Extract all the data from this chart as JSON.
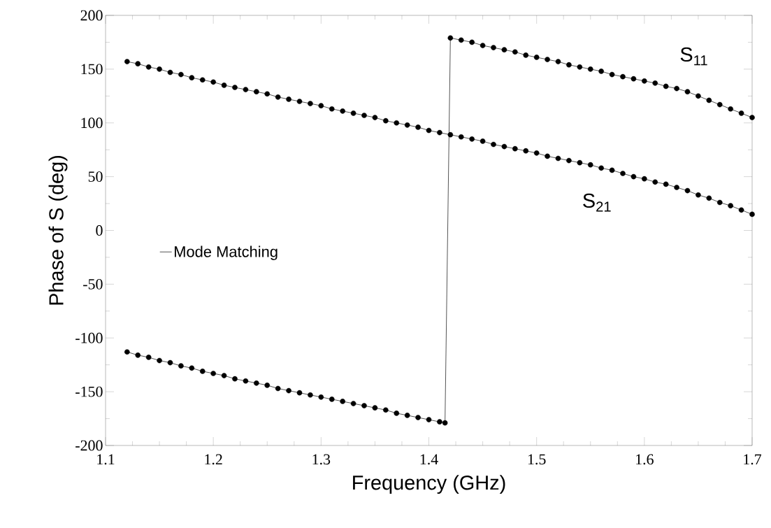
{
  "chart_data": {
    "type": "line",
    "xlabel": "Frequency (GHz)",
    "ylabel": "Phase of S (deg)",
    "xlim": [
      1.1,
      1.7
    ],
    "xticks": [
      1.1,
      1.2,
      1.3,
      1.4,
      1.5,
      1.6,
      1.7
    ],
    "ylim": [
      -200,
      200
    ],
    "yticks": [
      -200,
      -150,
      -100,
      -50,
      0,
      50,
      100,
      150,
      200
    ],
    "grid": false,
    "legend": "left",
    "annotations": [
      "S$_{11}$",
      "S$_{21}$"
    ],
    "series": [
      {
        "name": "Mode Matching",
        "color": "#555555",
        "line_style": "solid",
        "marker": "none",
        "x": [
          1.12,
          1.13,
          1.14,
          1.15,
          1.16,
          1.17,
          1.18,
          1.19,
          1.2,
          1.21,
          1.22,
          1.23,
          1.24,
          1.25,
          1.26,
          1.27,
          1.28,
          1.29,
          1.3,
          1.31,
          1.32,
          1.33,
          1.34,
          1.35,
          1.36,
          1.37,
          1.38,
          1.39,
          1.4,
          1.41,
          1.415,
          1.42,
          1.43,
          1.44,
          1.45,
          1.46,
          1.47,
          1.48,
          1.49,
          1.5,
          1.51,
          1.52,
          1.53,
          1.54,
          1.55,
          1.56,
          1.57,
          1.58,
          1.59,
          1.6,
          1.61,
          1.62,
          1.63,
          1.64,
          1.65,
          1.66,
          1.67,
          1.68,
          1.69,
          1.7
        ],
        "values": [
          -113,
          -116,
          -118,
          -121,
          -123,
          -126,
          -128,
          -131,
          -133,
          -135,
          -138,
          -140,
          -142,
          -144,
          -147,
          -149,
          -151,
          -153,
          -155,
          -157,
          -159,
          -161,
          -163,
          -165,
          -167,
          -170,
          -172,
          -174,
          -176,
          -178,
          -179,
          179,
          177,
          175,
          172,
          170,
          168,
          166,
          163,
          161,
          159,
          157,
          154,
          152,
          150,
          148,
          145,
          143,
          141,
          139,
          137,
          134,
          132,
          129,
          125,
          121,
          117,
          113,
          109,
          105
        ]
      },
      {
        "color": "#555555",
        "line_style": "solid",
        "marker": "none",
        "x": [
          1.12,
          1.13,
          1.14,
          1.15,
          1.16,
          1.17,
          1.18,
          1.19,
          1.2,
          1.21,
          1.22,
          1.23,
          1.24,
          1.25,
          1.26,
          1.27,
          1.28,
          1.29,
          1.3,
          1.31,
          1.32,
          1.33,
          1.34,
          1.35,
          1.36,
          1.37,
          1.38,
          1.39,
          1.4,
          1.41,
          1.42,
          1.43,
          1.44,
          1.45,
          1.46,
          1.47,
          1.48,
          1.49,
          1.5,
          1.51,
          1.52,
          1.53,
          1.54,
          1.55,
          1.56,
          1.57,
          1.58,
          1.59,
          1.6,
          1.61,
          1.62,
          1.63,
          1.64,
          1.65,
          1.66,
          1.67,
          1.68,
          1.69,
          1.7
        ],
        "values": [
          157,
          155,
          152,
          150,
          147,
          145,
          142,
          140,
          138,
          135,
          133,
          131,
          129,
          127,
          124,
          122,
          120,
          118,
          116,
          113,
          111,
          109,
          107,
          105,
          102,
          100,
          98,
          96,
          93,
          91,
          89,
          87,
          85,
          83,
          80,
          78,
          76,
          74,
          72,
          69,
          67,
          65,
          63,
          61,
          58,
          56,
          53,
          50,
          48,
          45,
          43,
          40,
          37,
          33,
          30,
          26,
          23,
          19,
          15
        ]
      },
      {
        "type": "scatter",
        "color": "#000000",
        "marker": "circle",
        "x": [
          1.12,
          1.13,
          1.14,
          1.15,
          1.16,
          1.17,
          1.18,
          1.19,
          1.2,
          1.21,
          1.22,
          1.23,
          1.24,
          1.25,
          1.26,
          1.27,
          1.28,
          1.29,
          1.3,
          1.31,
          1.32,
          1.33,
          1.34,
          1.35,
          1.36,
          1.37,
          1.38,
          1.39,
          1.4,
          1.41,
          1.415,
          1.42,
          1.43,
          1.44,
          1.45,
          1.46,
          1.47,
          1.48,
          1.49,
          1.5,
          1.51,
          1.52,
          1.53,
          1.54,
          1.55,
          1.56,
          1.57,
          1.58,
          1.59,
          1.6,
          1.61,
          1.62,
          1.63,
          1.64,
          1.65,
          1.66,
          1.67,
          1.68,
          1.69,
          1.7
        ],
        "values": [
          -113,
          -116,
          -118,
          -121,
          -123,
          -126,
          -128,
          -131,
          -133,
          -135,
          -138,
          -140,
          -142,
          -144,
          -147,
          -149,
          -151,
          -153,
          -155,
          -157,
          -159,
          -161,
          -163,
          -165,
          -167,
          -170,
          -172,
          -174,
          -176,
          -178,
          -179,
          179,
          177,
          175,
          172,
          170,
          168,
          166,
          163,
          161,
          159,
          157,
          154,
          152,
          150,
          148,
          145,
          143,
          141,
          139,
          137,
          134,
          132,
          129,
          125,
          121,
          117,
          113,
          109,
          105
        ]
      },
      {
        "type": "scatter",
        "color": "#000000",
        "marker": "circle",
        "x": [
          1.12,
          1.13,
          1.14,
          1.15,
          1.16,
          1.17,
          1.18,
          1.19,
          1.2,
          1.21,
          1.22,
          1.23,
          1.24,
          1.25,
          1.26,
          1.27,
          1.28,
          1.29,
          1.3,
          1.31,
          1.32,
          1.33,
          1.34,
          1.35,
          1.36,
          1.37,
          1.38,
          1.39,
          1.4,
          1.41,
          1.42,
          1.43,
          1.44,
          1.45,
          1.46,
          1.47,
          1.48,
          1.49,
          1.5,
          1.51,
          1.52,
          1.53,
          1.54,
          1.55,
          1.56,
          1.57,
          1.58,
          1.59,
          1.6,
          1.61,
          1.62,
          1.63,
          1.64,
          1.65,
          1.66,
          1.67,
          1.68,
          1.69,
          1.7
        ],
        "values": [
          157,
          155,
          152,
          150,
          147,
          145,
          142,
          140,
          138,
          135,
          133,
          131,
          129,
          127,
          124,
          122,
          120,
          118,
          116,
          113,
          111,
          109,
          107,
          105,
          102,
          100,
          98,
          96,
          93,
          91,
          89,
          87,
          85,
          83,
          80,
          78,
          76,
          74,
          72,
          69,
          67,
          65,
          63,
          61,
          58,
          56,
          53,
          50,
          48,
          45,
          43,
          40,
          37,
          33,
          30,
          26,
          23,
          19,
          15
        ]
      }
    ]
  }
}
